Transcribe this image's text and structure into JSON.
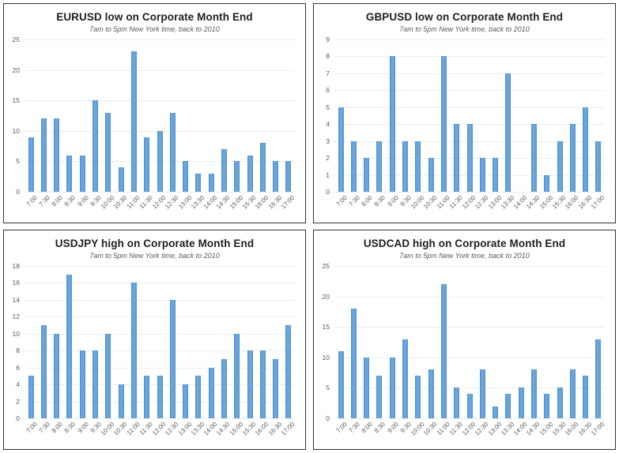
{
  "colors": {
    "bar_fill": "#5B9BD5",
    "bar_edge": "#4E8FCC",
    "gridline": "#ECECEC",
    "title_text": "#1F1F1F",
    "subtitle_text": "#595959",
    "tick_label": "#595959",
    "panel_border": "#333333",
    "background": "#FFFFFF"
  },
  "chart_data": [
    {
      "type": "bar",
      "title": "EURUSD low on Corporate Month End",
      "subtitle": "7am to 5pm New York time, back to 2010",
      "categories": [
        "7:00",
        "7:30",
        "8:00",
        "8:30",
        "9:00",
        "9:30",
        "10:00",
        "10:30",
        "11:00",
        "11:30",
        "12:00",
        "12:30",
        "13:00",
        "13:30",
        "14:00",
        "14:30",
        "15:00",
        "15:30",
        "16:00",
        "16:30",
        "17:00"
      ],
      "values": [
        9,
        12,
        12,
        6,
        6,
        15,
        13,
        4,
        23,
        9,
        10,
        13,
        5,
        3,
        3,
        7,
        5,
        6,
        8,
        5,
        5
      ],
      "xlabel": "",
      "ylabel": "",
      "ylim": [
        0,
        25
      ],
      "yticks": [
        0,
        5,
        10,
        15,
        20,
        25
      ],
      "grid": true,
      "legend": "none"
    },
    {
      "type": "bar",
      "title": "GBPUSD low on Corporate Month End",
      "subtitle": "7am to 5pm New York time, back to 2010",
      "categories": [
        "7:00",
        "7:30",
        "8:00",
        "8:30",
        "9:00",
        "9:30",
        "10:00",
        "10:30",
        "11:00",
        "11:30",
        "12:00",
        "12:30",
        "13:00",
        "13:30",
        "14:00",
        "14:30",
        "15:00",
        "15:30",
        "16:00",
        "16:30",
        "17:00"
      ],
      "values": [
        5,
        3,
        2,
        3,
        8,
        3,
        3,
        2,
        8,
        4,
        4,
        2,
        2,
        7,
        0,
        4,
        1,
        3,
        4,
        5,
        3
      ],
      "xlabel": "",
      "ylabel": "",
      "ylim": [
        0,
        9
      ],
      "yticks": [
        0,
        1,
        2,
        3,
        4,
        5,
        6,
        7,
        8,
        9
      ],
      "grid": true,
      "legend": "none"
    },
    {
      "type": "bar",
      "title": "USDJPY high on Corporate Month End",
      "subtitle": "7am to 5pm New York time, back to 2010",
      "categories": [
        "7:00",
        "7:30",
        "8:00",
        "8:30",
        "9:00",
        "9:30",
        "10:00",
        "10:30",
        "11:00",
        "11:30",
        "12:00",
        "12:30",
        "13:00",
        "13:30",
        "14:00",
        "14:30",
        "15:00",
        "15:30",
        "16:00",
        "16:30",
        "17:00"
      ],
      "values": [
        5,
        11,
        10,
        17,
        8,
        8,
        10,
        4,
        16,
        5,
        5,
        14,
        4,
        5,
        6,
        7,
        10,
        8,
        8,
        7,
        11
      ],
      "xlabel": "",
      "ylabel": "",
      "ylim": [
        0,
        18
      ],
      "yticks": [
        0,
        2,
        4,
        6,
        8,
        10,
        12,
        14,
        16,
        18
      ],
      "grid": true,
      "legend": "none"
    },
    {
      "type": "bar",
      "title": "USDCAD high on Corporate Month End",
      "subtitle": "7am to 5pm New York time, back to 2010",
      "categories": [
        "7:00",
        "7:30",
        "8:00",
        "8:30",
        "9:00",
        "9:30",
        "10:00",
        "10:30",
        "11:00",
        "11:30",
        "12:00",
        "12:30",
        "13:00",
        "13:30",
        "14:00",
        "14:30",
        "15:00",
        "15:30",
        "16:00",
        "16:30",
        "17:00"
      ],
      "values": [
        11,
        18,
        10,
        7,
        10,
        13,
        7,
        8,
        22,
        5,
        4,
        8,
        2,
        4,
        5,
        8,
        4,
        5,
        8,
        7,
        13
      ],
      "xlabel": "",
      "ylabel": "",
      "ylim": [
        0,
        25
      ],
      "yticks": [
        0,
        5,
        10,
        15,
        20,
        25
      ],
      "grid": true,
      "legend": "none"
    }
  ]
}
